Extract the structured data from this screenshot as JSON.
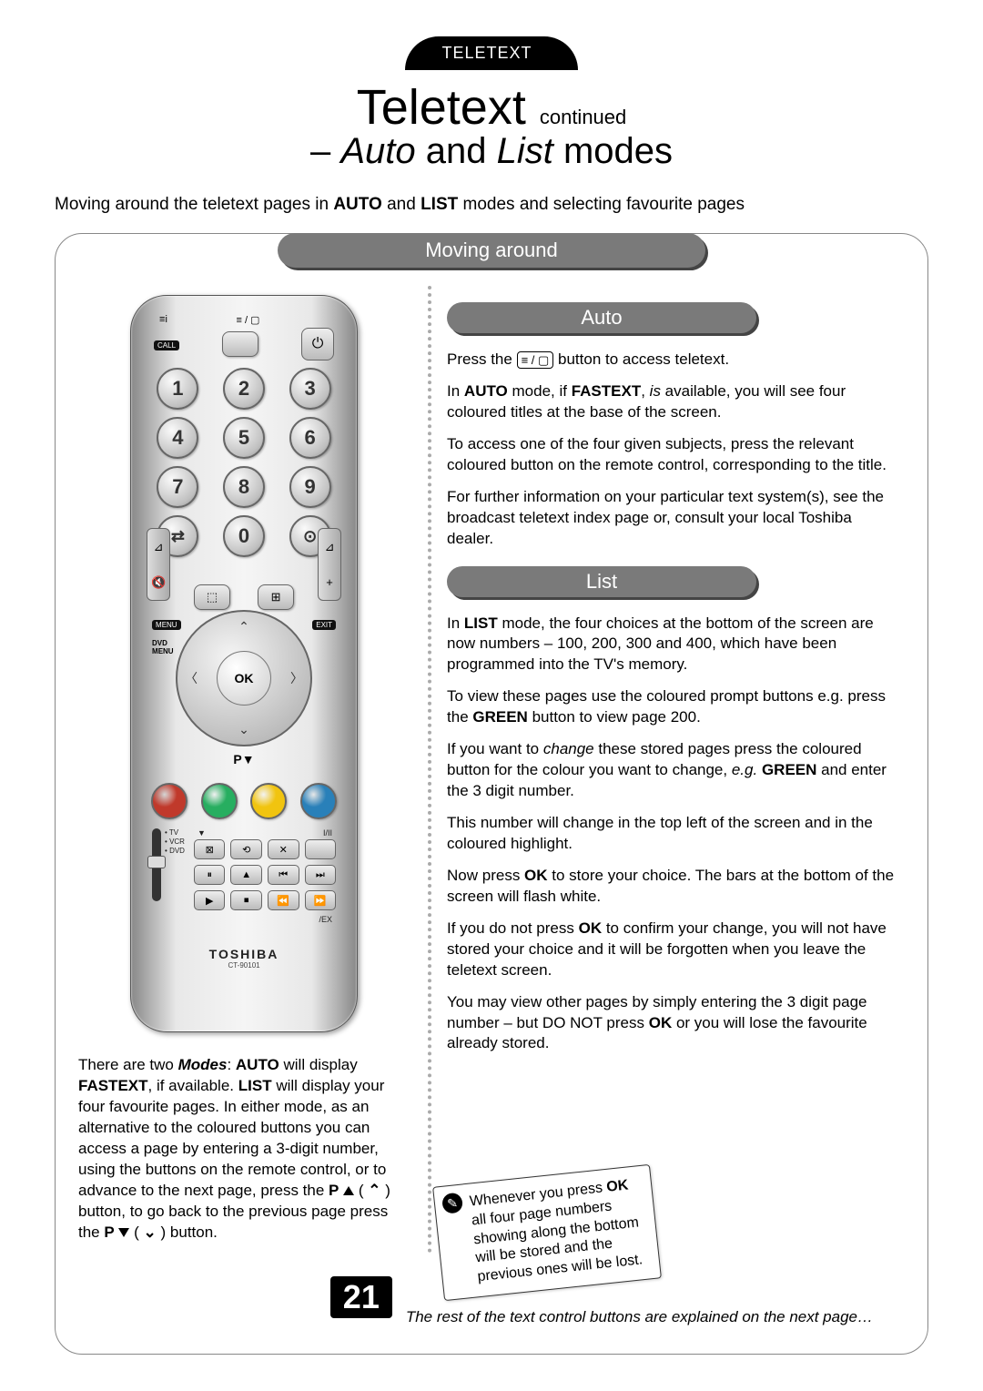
{
  "tab": "TELETEXT",
  "title_main": "Teletext",
  "title_cont": "continued",
  "subtitle_prefix": "– ",
  "subtitle_auto": "Auto",
  "subtitle_and": " and ",
  "subtitle_list": "List",
  "subtitle_suffix": " modes",
  "intro_a": "Moving around the teletext pages in ",
  "intro_b": "AUTO",
  "intro_c": " and ",
  "intro_d": "LIST",
  "intro_e": " modes and selecting favourite pages",
  "pill_main": "Moving around",
  "pill_auto": "Auto",
  "pill_list": "List",
  "remote": {
    "top_label_left": "≡i",
    "top_label_mid": "≡ / ▢",
    "call": "CALL",
    "power": "⏻",
    "digits": [
      "1",
      "2",
      "3",
      "4",
      "5",
      "6",
      "7",
      "8",
      "9",
      "0"
    ],
    "swap": "⇄",
    "clock": "⊙",
    "tv_icon": "▭",
    "menu": "MENU",
    "exit": "EXIT",
    "p_up": "P▲",
    "p_dn": "P▼",
    "dvd_menu": "DVD\nMENU",
    "ok": "OK",
    "vol_minus": "🔇",
    "vol_plus": "+",
    "slider_labels": [
      "TV",
      "VCR",
      "DVD"
    ],
    "grid_icons": [
      "⊠",
      "⟲",
      "✕",
      "",
      "⏸",
      "▲",
      "⏮",
      "⏭",
      "▶",
      "⏹",
      "⏪",
      "⏩"
    ],
    "small_icons": [
      "⬚",
      "⊞"
    ],
    "tr_label": "I/II",
    "ex_label": "/EX",
    "stop_icon": "▼",
    "color_buttons": [
      "#c0392b",
      "#27ae60",
      "#f1c40f",
      "#2980b9"
    ],
    "brand": "TOSHIBA",
    "model": "CT-90101"
  },
  "left_para_parts": [
    {
      "t": "There are two "
    },
    {
      "t": "Modes",
      "i": true,
      "b": true
    },
    {
      "t": ": "
    },
    {
      "t": "AUTO",
      "b": true
    },
    {
      "t": " will display "
    },
    {
      "t": "FASTEXT",
      "b": true
    },
    {
      "t": ", if available. "
    },
    {
      "t": "LIST",
      "b": true
    },
    {
      "t": " will display your four favourite pages. In either mode, as an alternative to the coloured buttons you can access a page by entering a 3-digit number, using the buttons on the remote control, or to advance to the next page, press the "
    },
    {
      "t": "P",
      "b": true
    },
    {
      "t": " "
    },
    {
      "tri": "up"
    },
    {
      "t": " ( "
    },
    {
      "arr": "up"
    },
    {
      "t": " ) button, to go back to the previous page press the "
    },
    {
      "t": "P",
      "b": true
    },
    {
      "t": " "
    },
    {
      "tri": "dn"
    },
    {
      "t": " ( "
    },
    {
      "arr": "dn"
    },
    {
      "t": " ) button."
    }
  ],
  "auto_p1_a": "Press the ",
  "auto_p1_icon": "≡ / ▢",
  "auto_p1_b": " button to access teletext.",
  "auto_p2_a": "In ",
  "auto_p2_b": "AUTO",
  "auto_p2_c": " mode, if ",
  "auto_p2_d": "FASTEXT",
  "auto_p2_e": ", ",
  "auto_p2_f": "is",
  "auto_p2_g": " available, you will see four coloured titles at the base of the screen.",
  "auto_p3": "To access one of the four given subjects, press the relevant coloured button on the remote control, corresponding to the title.",
  "auto_p4": "For further information on your particular text system(s), see the broadcast teletext index page or, consult your local Toshiba dealer.",
  "list_p1_a": "In ",
  "list_p1_b": "LIST",
  "list_p1_c": " mode, the four choices at the bottom of the screen are now numbers – 100, 200, 300 and 400, which have been programmed into the TV's memory.",
  "list_p2_a": "To view these pages use the coloured prompt buttons e.g. press the ",
  "list_p2_b": "GREEN",
  "list_p2_c": " button to view page 200.",
  "list_p3_a": "If you want to ",
  "list_p3_b": "change",
  "list_p3_c": " these stored pages press the coloured button for the colour you want to change, ",
  "list_p3_d": "e.g.",
  "list_p3_e": " ",
  "list_p3_f": "GREEN",
  "list_p3_g": " and enter the 3 digit number.",
  "list_p4": "This number will change in the top left of the screen and in the coloured highlight.",
  "list_p5_a": "Now press ",
  "list_p5_b": "OK",
  "list_p5_c": " to store your choice. The bars at the bottom of the screen will flash white.",
  "list_p6_a": "If you do not press ",
  "list_p6_b": "OK",
  "list_p6_c": " to confirm your change, you will not have stored your choice and it will be forgotten when you leave the teletext screen.",
  "list_p7_a": "You may view other pages by simply entering the 3 digit page number – but DO NOT press ",
  "list_p7_b": "OK",
  "list_p7_c": " or you will lose the favourite already stored.",
  "note_a": "Whenever you press ",
  "note_b": "OK",
  "note_c": " all four page numbers showing along the bottom will be stored and the previous ones will be lost.",
  "page_number": "21",
  "footnote": "The rest of the text control buttons are explained on the next page…"
}
